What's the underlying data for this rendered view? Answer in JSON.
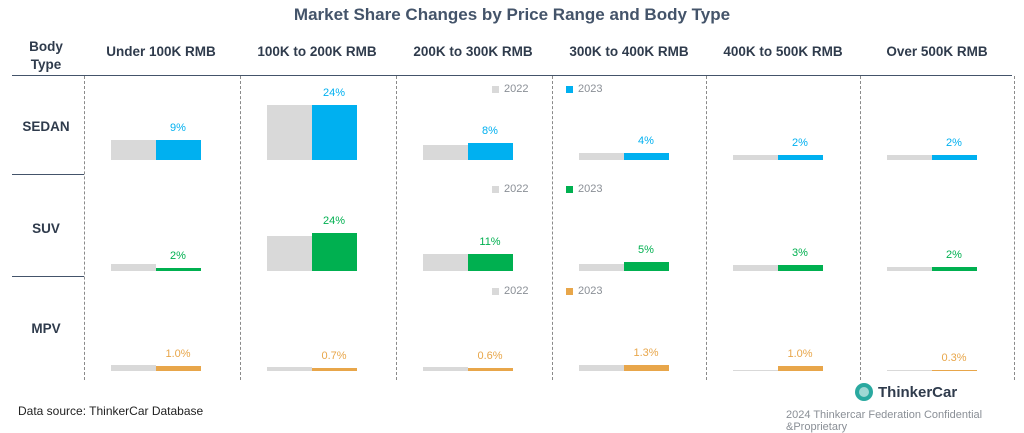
{
  "chart_data": {
    "type": "bar",
    "title": "Market Share Changes by Price Range and Body Type",
    "corner_label": "Body Type",
    "categories": [
      "Under 100K RMB",
      "100K to 200K RMB",
      "200K to 300K RMB",
      "300K to 400K RMB",
      "400K to 500K RMB",
      "Over 500K RMB"
    ],
    "legend": [
      "2022",
      "2023"
    ],
    "series_years": [
      "2022",
      "2023"
    ],
    "rows": [
      {
        "name": "SEDAN",
        "color_2023": "#00b0f0",
        "values_2022": [
          4,
          11,
          3,
          1.5,
          1,
          1
        ],
        "values_2023": [
          4,
          11,
          3.5,
          1.5,
          1,
          1
        ],
        "labels_2023": [
          "9%",
          "24%",
          "8%",
          "4%",
          "2%",
          "2%"
        ]
      },
      {
        "name": "SUV",
        "color_2023": "#00b050",
        "values_2022": [
          1.5,
          7,
          3.5,
          1.5,
          1.2,
          0.8
        ],
        "values_2023": [
          0.7,
          7.7,
          3.5,
          1.8,
          1.2,
          0.8
        ],
        "labels_2023": [
          "2%",
          "24%",
          "11%",
          "5%",
          "3%",
          "2%"
        ]
      },
      {
        "name": "MPV",
        "color_2023": "#e8a64a",
        "values_2022": [
          1.3,
          0.9,
          0.8,
          1.2,
          0.05,
          0.3
        ],
        "values_2023": [
          1.0,
          0.7,
          0.6,
          1.3,
          1.0,
          0.3
        ],
        "labels_2023": [
          "1.0%",
          "0.7%",
          "0.6%",
          "1.3%",
          "1.0%",
          "0.3%"
        ]
      }
    ],
    "color_2022": "#d9d9d9",
    "source": "Data source: ThinkerCar Database",
    "brand": "ThinkerCar",
    "copyright": "2024 Thinkercar Federation Confidential &Proprietary"
  }
}
